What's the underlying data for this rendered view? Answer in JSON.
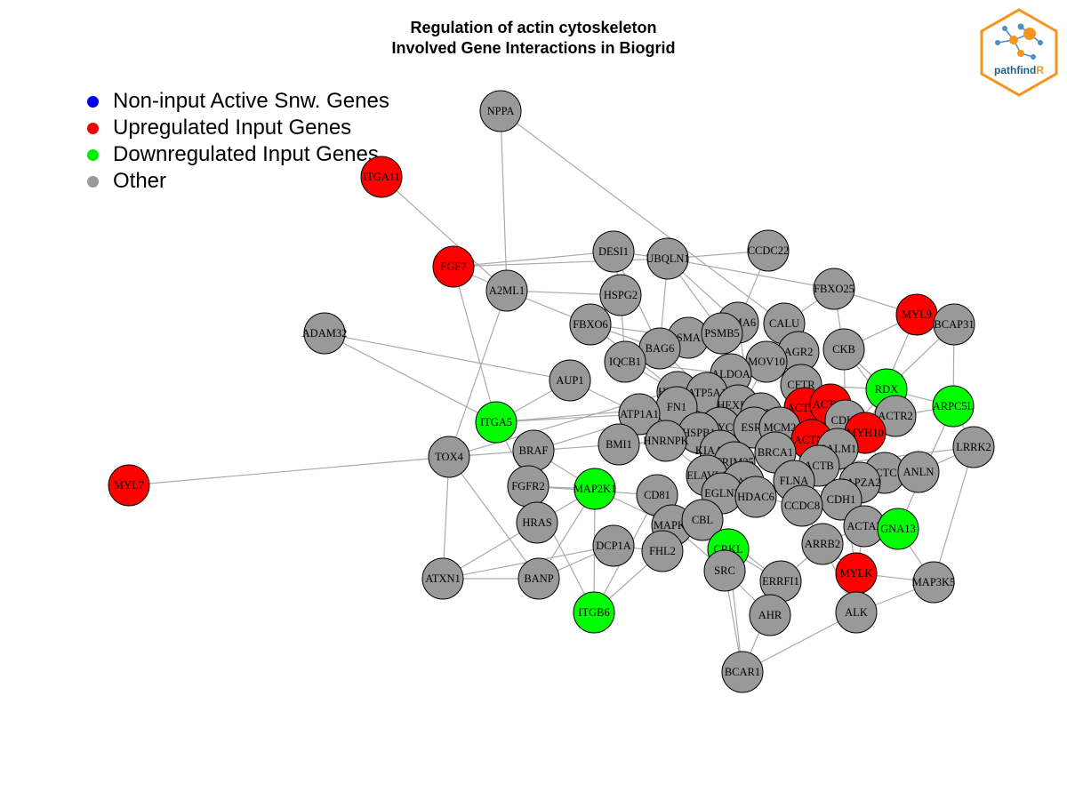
{
  "title": {
    "line1": "Regulation of actin cytoskeleton",
    "line2": "Involved Gene Interactions in Biogrid"
  },
  "legend": [
    {
      "label": "Non-input Active Snw. Genes",
      "color": "#0000ee"
    },
    {
      "label": "Upregulated Input Genes",
      "color": "#ee0000"
    },
    {
      "label": "Downregulated Input Genes",
      "color": "#00ee00"
    },
    {
      "label": "Other",
      "color": "#999999"
    }
  ],
  "logo": {
    "text_main": "pathfind",
    "text_accent": "R",
    "border_color": "#f7941d",
    "text_color": "#1f5f8b"
  },
  "colors": {
    "up": "#ff0000",
    "down": "#00ff00",
    "other": "#999999",
    "edge": "#aaaaaa"
  },
  "network": {
    "nodes": [
      {
        "id": "NPPA",
        "group": "other"
      },
      {
        "id": "ITGA11",
        "group": "up"
      },
      {
        "id": "FGF7",
        "group": "up"
      },
      {
        "id": "A2ML1",
        "group": "other"
      },
      {
        "id": "DESI1",
        "group": "other"
      },
      {
        "id": "UBQLN1",
        "group": "other"
      },
      {
        "id": "CCDC22",
        "group": "other"
      },
      {
        "id": "FBXO25",
        "group": "other"
      },
      {
        "id": "HSPG2",
        "group": "other"
      },
      {
        "id": "MYL9",
        "group": "up"
      },
      {
        "id": "BCAP31",
        "group": "other"
      },
      {
        "id": "ADAM32",
        "group": "other"
      },
      {
        "id": "FBXO6",
        "group": "other"
      },
      {
        "id": "PSMA6",
        "group": "other"
      },
      {
        "id": "CALU",
        "group": "other"
      },
      {
        "id": "PSMA1",
        "group": "other"
      },
      {
        "id": "PSMB5",
        "group": "other"
      },
      {
        "id": "BAG6",
        "group": "other"
      },
      {
        "id": "AGR2",
        "group": "other"
      },
      {
        "id": "CKB",
        "group": "other"
      },
      {
        "id": "IQCB1",
        "group": "other"
      },
      {
        "id": "MOV10",
        "group": "other"
      },
      {
        "id": "ALDOA",
        "group": "other"
      },
      {
        "id": "AUP1",
        "group": "other"
      },
      {
        "id": "RDX",
        "group": "down"
      },
      {
        "id": "CFTR",
        "group": "other"
      },
      {
        "id": "HUWE1",
        "group": "other"
      },
      {
        "id": "ATP5A1",
        "group": "other"
      },
      {
        "id": "ARPC5L",
        "group": "down"
      },
      {
        "id": "ACTN1",
        "group": "up"
      },
      {
        "id": "MYLK",
        "group": "up"
      },
      {
        "id": "ACTG1",
        "group": "up"
      },
      {
        "id": "HEXIM1",
        "group": "other"
      },
      {
        "id": "FN1",
        "group": "other"
      },
      {
        "id": "ITGA5",
        "group": "down"
      },
      {
        "id": "ATP1A1",
        "group": "other"
      },
      {
        "id": "NTRK1",
        "group": "other"
      },
      {
        "id": "CDK2",
        "group": "other"
      },
      {
        "id": "ACTR2",
        "group": "other"
      },
      {
        "id": "MYC",
        "group": "other"
      },
      {
        "id": "ESR1",
        "group": "other"
      },
      {
        "id": "MCM2",
        "group": "other"
      },
      {
        "id": "HSPB1",
        "group": "other"
      },
      {
        "id": "HNRNPK",
        "group": "other"
      },
      {
        "id": "ACTN4",
        "group": "up"
      },
      {
        "id": "MYH10",
        "group": "up"
      },
      {
        "id": "LRRK2",
        "group": "other"
      },
      {
        "id": "BMI1",
        "group": "other"
      },
      {
        "id": "CALM1",
        "group": "other"
      },
      {
        "id": "BRAF",
        "group": "other"
      },
      {
        "id": "KIAA1429",
        "group": "other"
      },
      {
        "id": "BRCA1",
        "group": "other"
      },
      {
        "id": "TOX4",
        "group": "other"
      },
      {
        "id": "TRIM25",
        "group": "other"
      },
      {
        "id": "ACTB",
        "group": "other"
      },
      {
        "id": "ACTC1",
        "group": "other"
      },
      {
        "id": "ANLN",
        "group": "other"
      },
      {
        "id": "MYL7",
        "group": "up"
      },
      {
        "id": "ELAVL1",
        "group": "other"
      },
      {
        "id": "FGFR2",
        "group": "other"
      },
      {
        "id": "MAP2K1",
        "group": "down"
      },
      {
        "id": "AAR2",
        "group": "other"
      },
      {
        "id": "FLNA",
        "group": "other"
      },
      {
        "id": "CAPZA2",
        "group": "other"
      },
      {
        "id": "CD81",
        "group": "other"
      },
      {
        "id": "EGLN3",
        "group": "other"
      },
      {
        "id": "HDAC6",
        "group": "other"
      },
      {
        "id": "CDH1",
        "group": "other"
      },
      {
        "id": "CCDC8",
        "group": "other"
      },
      {
        "id": "HRAS",
        "group": "other"
      },
      {
        "id": "MAPK1",
        "group": "other"
      },
      {
        "id": "CBL",
        "group": "other"
      },
      {
        "id": "ACTA2",
        "group": "other"
      },
      {
        "id": "GNA13",
        "group": "down"
      },
      {
        "id": "DCP1A",
        "group": "other"
      },
      {
        "id": "FHL2",
        "group": "other"
      },
      {
        "id": "CRKL",
        "group": "down"
      },
      {
        "id": "ARRB2",
        "group": "other"
      },
      {
        "id": "SRC",
        "group": "other"
      },
      {
        "id": "ERRFI1",
        "group": "other"
      },
      {
        "id": "ATXN1",
        "group": "other"
      },
      {
        "id": "BANP",
        "group": "other"
      },
      {
        "id": "MAP3K5",
        "group": "other"
      },
      {
        "id": "ITGB6",
        "group": "down"
      },
      {
        "id": "AHR",
        "group": "other"
      },
      {
        "id": "ALK",
        "group": "other"
      },
      {
        "id": "BCAR1",
        "group": "other"
      }
    ],
    "edges": [
      [
        "NPPA",
        "A2ML1"
      ],
      [
        "NPPA",
        "CALU"
      ],
      [
        "ITGA11",
        "A2ML1"
      ],
      [
        "FGF7",
        "A2ML1"
      ],
      [
        "FGF7",
        "ITGA5"
      ],
      [
        "FGF7",
        "DESI1"
      ],
      [
        "FGF7",
        "UBQLN1"
      ],
      [
        "MYL7",
        "TOX4"
      ],
      [
        "ADAM32",
        "AUP1"
      ],
      [
        "ADAM32",
        "ITGA5"
      ],
      [
        "TOX4",
        "BRAF"
      ],
      [
        "TOX4",
        "ATXN1"
      ],
      [
        "TOX4",
        "BANP"
      ],
      [
        "TOX4",
        "ALDOA"
      ],
      [
        "TOX4",
        "A2ML1"
      ],
      [
        "ATXN1",
        "BANP"
      ],
      [
        "ATXN1",
        "HRAS"
      ],
      [
        "ATXN1",
        "DCP1A"
      ],
      [
        "BANP",
        "MAP2K1"
      ],
      [
        "BANP",
        "DCP1A"
      ],
      [
        "MAP3K5",
        "ALK"
      ],
      [
        "MAP3K5",
        "LRRK2"
      ],
      [
        "MAP3K5",
        "GNA13"
      ],
      [
        "BCAR1",
        "SRC"
      ],
      [
        "BCAR1",
        "CRKL"
      ],
      [
        "BCAR1",
        "ALK"
      ],
      [
        "BCAR1",
        "ERRFI1"
      ],
      [
        "MYL9",
        "BCAP31"
      ],
      [
        "MYL9",
        "CKB"
      ],
      [
        "MYL9",
        "MYH10"
      ],
      [
        "ARPC5L",
        "ACTR2"
      ],
      [
        "ARPC5L",
        "LRRK2"
      ],
      [
        "ARPC5L",
        "BCAP31"
      ],
      [
        "RDX",
        "CFTR"
      ],
      [
        "RDX",
        "ACTB"
      ],
      [
        "ITGB6",
        "MAP2K1"
      ],
      [
        "ITGB6",
        "CD81"
      ],
      [
        "ITGB6",
        "FHL2"
      ],
      [
        "ITGA5",
        "ITGB6"
      ],
      [
        "ITGA5",
        "FN1"
      ],
      [
        "ITGA5",
        "ATP1A1"
      ],
      [
        "ITGA5",
        "AUP1"
      ],
      [
        "MYLK",
        "CALM1"
      ],
      [
        "MYLK",
        "ACTA2"
      ],
      [
        "MYLK",
        "ARRB2"
      ],
      [
        "MYLK",
        "ALK"
      ],
      [
        "MYLK",
        "MAP3K5"
      ],
      [
        "CCDC22",
        "UBQLN1"
      ],
      [
        "CCDC22",
        "PSMA6"
      ],
      [
        "FBXO25",
        "MYL9"
      ],
      [
        "FBXO25",
        "CALU"
      ],
      [
        "FBXO25",
        "CKB"
      ],
      [
        "DESI1",
        "HSPG2"
      ],
      [
        "DESI1",
        "UBQLN1"
      ],
      [
        "DESI1",
        "BAG6"
      ],
      [
        "UBQLN1",
        "PSMA6"
      ],
      [
        "UBQLN1",
        "PSMB5"
      ],
      [
        "UBQLN1",
        "BAG6"
      ],
      [
        "UBQLN1",
        "FBXO25"
      ],
      [
        "HSPG2",
        "FBXO6"
      ],
      [
        "HSPG2",
        "IQCB1"
      ],
      [
        "FBXO6",
        "PSMA1"
      ],
      [
        "FBXO6",
        "BAG6"
      ],
      [
        "FBXO6",
        "HUWE1"
      ],
      [
        "PSMA1",
        "PSMB5"
      ],
      [
        "PSMA1",
        "PSMA6"
      ],
      [
        "PSMA6",
        "PSMB5"
      ],
      [
        "PSMB5",
        "ALDOA"
      ],
      [
        "BAG6",
        "PSMA1"
      ],
      [
        "BAG6",
        "IQCB1"
      ],
      [
        "IQCB1",
        "HUWE1"
      ],
      [
        "CALU",
        "AGR2"
      ],
      [
        "AGR2",
        "MOV10"
      ],
      [
        "AGR2",
        "CFTR"
      ],
      [
        "MOV10",
        "ALDOA"
      ],
      [
        "CKB",
        "CDK2"
      ],
      [
        "CKB",
        "ACTR2"
      ],
      [
        "CFTR",
        "ACTN1"
      ],
      [
        "HUWE1",
        "ATP5A1"
      ],
      [
        "HUWE1",
        "FN1"
      ],
      [
        "ATP5A1",
        "HEXIM1"
      ],
      [
        "FN1",
        "ATP1A1"
      ],
      [
        "FN1",
        "HSPB1"
      ],
      [
        "HEXIM1",
        "MYC"
      ],
      [
        "HEXIM1",
        "NTRK1"
      ],
      [
        "NTRK1",
        "ESR1"
      ],
      [
        "NTRK1",
        "MCM2"
      ],
      [
        "MYC",
        "ESR1"
      ],
      [
        "MYC",
        "HSPB1"
      ],
      [
        "MYC",
        "KIAA1429"
      ],
      [
        "ESR1",
        "BRCA1"
      ],
      [
        "ESR1",
        "MCM2"
      ],
      [
        "MCM2",
        "CDK2"
      ],
      [
        "CDK2",
        "ACTN4"
      ],
      [
        "ACTN4",
        "ACTN1"
      ],
      [
        "ACTN4",
        "ACTG1"
      ],
      [
        "ACTN1",
        "ACTG1"
      ],
      [
        "ACTG1",
        "CALM1"
      ],
      [
        "CALM1",
        "ACTB"
      ],
      [
        "ACTB",
        "ACTC1"
      ],
      [
        "ACTC1",
        "ANLN"
      ],
      [
        "ANLN",
        "LRRK2"
      ],
      [
        "ACTR2",
        "ACTB"
      ],
      [
        "MYH10",
        "CALM1"
      ],
      [
        "MYH10",
        "ACTC1"
      ],
      [
        "HNRNPK",
        "HSPB1"
      ],
      [
        "HNRNPK",
        "BMI1"
      ],
      [
        "BMI1",
        "ATP1A1"
      ],
      [
        "KIAA1429",
        "TRIM25"
      ],
      [
        "TRIM25",
        "BRCA1"
      ],
      [
        "BRCA1",
        "FLNA"
      ],
      [
        "FLNA",
        "CDH1"
      ],
      [
        "CDH1",
        "CAPZA2"
      ],
      [
        "CAPZA2",
        "ACTC1"
      ],
      [
        "ELAVL1",
        "AAR2"
      ],
      [
        "AAR2",
        "EGLN3"
      ],
      [
        "EGLN3",
        "HDAC6"
      ],
      [
        "HDAC6",
        "CCDC8"
      ],
      [
        "CCDC8",
        "CDH1"
      ],
      [
        "CD81",
        "MAPK1"
      ],
      [
        "MAPK1",
        "CBL"
      ],
      [
        "CBL",
        "SRC"
      ],
      [
        "SRC",
        "CRKL"
      ],
      [
        "CRKL",
        "ERRFI1"
      ],
      [
        "ERRFI1",
        "ARRB2"
      ],
      [
        "ARRB2",
        "ACTA2"
      ],
      [
        "ACTA2",
        "GNA13"
      ],
      [
        "GNA13",
        "CDH1"
      ],
      [
        "HRAS",
        "MAP2K1"
      ],
      [
        "HRAS",
        "BRAF"
      ],
      [
        "BRAF",
        "MAP2K1"
      ],
      [
        "FGFR2",
        "MAP2K1"
      ],
      [
        "FGFR2",
        "HRAS"
      ],
      [
        "MAP2K1",
        "MAPK1"
      ],
      [
        "DCP1A",
        "FHL2"
      ],
      [
        "FHL2",
        "MAPK1"
      ],
      [
        "AHR",
        "SRC"
      ],
      [
        "AHR",
        "ERRFI1"
      ],
      [
        "ALK",
        "ARRB2"
      ],
      [
        "SRC",
        "MAPK1"
      ],
      [
        "ELAVL1",
        "HNRNPK"
      ],
      [
        "ELAVL1",
        "MYC"
      ],
      [
        "HSPB1",
        "KIAA1429"
      ],
      [
        "ALDOA",
        "HEXIM1"
      ],
      [
        "ALDOA",
        "ACTN4"
      ],
      [
        "MOV10",
        "ELAVL1"
      ],
      [
        "PSMA6",
        "ESR1"
      ],
      [
        "PSMB5",
        "MYC"
      ],
      [
        "AUP1",
        "ATP1A1"
      ],
      [
        "ATP1A1",
        "HNRNPK"
      ],
      [
        "BRAF",
        "HNRNPK"
      ],
      [
        "FGFR2",
        "CD81"
      ],
      [
        "CD81",
        "CBL"
      ],
      [
        "CBL",
        "CRKL"
      ],
      [
        "EGLN3",
        "MAPK1"
      ],
      [
        "HDAC6",
        "ACTB"
      ],
      [
        "FLNA",
        "ACTN4"
      ],
      [
        "CCDC8",
        "ARRB2"
      ],
      [
        "BRCA1",
        "CDK2"
      ],
      [
        "TRIM25",
        "ELAVL1"
      ],
      [
        "MCM2",
        "ACTN4"
      ],
      [
        "CALU",
        "ACTB"
      ],
      [
        "CKB",
        "RDX"
      ],
      [
        "BCAP31",
        "RDX"
      ],
      [
        "LRRK2",
        "ACTB"
      ],
      [
        "A2ML1",
        "FBXO6"
      ],
      [
        "A2ML1",
        "HSPG2"
      ],
      [
        "BAG6",
        "ATP5A1"
      ],
      [
        "IQCB1",
        "ALDOA"
      ],
      [
        "HUWE1",
        "MYC"
      ],
      [
        "FN1",
        "BRAF"
      ],
      [
        "ATP5A1",
        "ESR1"
      ],
      [
        "HEXIM1",
        "CDK2"
      ],
      [
        "KIAA1429",
        "EGLN3"
      ],
      [
        "HSPB1",
        "ELAVL1"
      ],
      [
        "GNA13",
        "ARPC5L"
      ],
      [
        "ACTR2",
        "MYH10"
      ],
      [
        "RDX",
        "ARPC5L"
      ],
      [
        "ATP1A1",
        "BMI1"
      ],
      [
        "CBL",
        "ERRFI1"
      ]
    ]
  }
}
